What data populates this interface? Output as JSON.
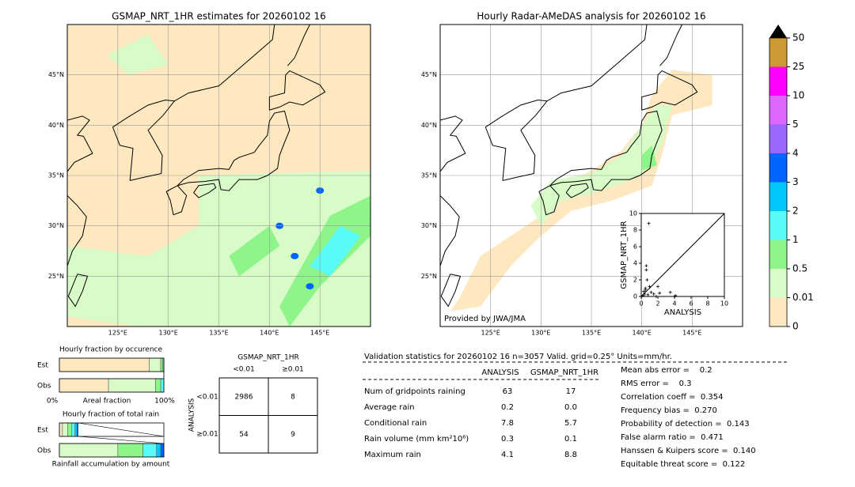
{
  "map_left": {
    "title": "GSMAP_NRT_1HR estimates for 20260102 16",
    "xlim": [
      120,
      150
    ],
    "ylim": [
      20,
      50
    ],
    "xticks": [
      {
        "value": 125,
        "label": "125°E"
      },
      {
        "value": 130,
        "label": "130°E"
      },
      {
        "value": 135,
        "label": "135°E"
      },
      {
        "value": 140,
        "label": "140°E"
      },
      {
        "value": 145,
        "label": "145°E"
      }
    ],
    "yticks": [
      {
        "value": 25,
        "label": "25°N"
      },
      {
        "value": 30,
        "label": "30°N"
      },
      {
        "value": 35,
        "label": "35°N"
      },
      {
        "value": 40,
        "label": "40°N"
      },
      {
        "value": 45,
        "label": "45°N"
      }
    ]
  },
  "map_right": {
    "title": "Hourly Radar-AMeDAS analysis for 20260102 16",
    "credit": "Provided by JWA/JMA",
    "xlim": [
      120,
      150
    ],
    "ylim": [
      20,
      50
    ],
    "xticks": [
      {
        "value": 125,
        "label": "125°E"
      },
      {
        "value": 130,
        "label": "130°E"
      },
      {
        "value": 135,
        "label": "135°E"
      },
      {
        "value": 140,
        "label": "140°E"
      },
      {
        "value": 145,
        "label": "145°E"
      }
    ],
    "yticks": [
      {
        "value": 25,
        "label": "25°N"
      },
      {
        "value": 30,
        "label": "30°N"
      },
      {
        "value": 35,
        "label": "35°N"
      },
      {
        "value": 40,
        "label": "40°N"
      },
      {
        "value": 45,
        "label": "45°N"
      }
    ]
  },
  "colorbar": {
    "labels": [
      "0",
      "0.01",
      "0.5",
      "1",
      "2",
      "3",
      "4",
      "5",
      "10",
      "25",
      "50"
    ],
    "colors": [
      "#fde8c0",
      "#d8fbc8",
      "#8ef58a",
      "#5afbf7",
      "#00c8fb",
      "#0064ff",
      "#9966ff",
      "#dd66ff",
      "#ff00ff",
      "#cc9933"
    ],
    "extend_color": "#000000"
  },
  "scatter": {
    "x_label": "ANALYSIS",
    "y_label": "GSMAP_NRT_1HR",
    "xlim": [
      0,
      10
    ],
    "ylim": [
      0,
      10
    ],
    "xticks": [
      0,
      2,
      4,
      6,
      8,
      10
    ],
    "yticks": [
      0,
      2,
      4,
      6,
      8,
      10
    ],
    "x": [
      0.2,
      0.4,
      0.5,
      0.6,
      0.8,
      1.0,
      1.2,
      0.7,
      0.3,
      1.5,
      2.0,
      3.5,
      4.1,
      1.8,
      0.9,
      0.6,
      0.5,
      2.2
    ],
    "y": [
      0.1,
      0.3,
      1.0,
      3.7,
      0.2,
      1.2,
      0.5,
      2.0,
      0.6,
      0.3,
      1.2,
      0.5,
      0.1,
      0.0,
      8.8,
      3.2,
      0.8,
      0.4
    ]
  },
  "fraction_occurrence": {
    "title": "Hourly fraction by occurence",
    "rows": [
      "Est",
      "Obs"
    ],
    "axis_left": "0%",
    "axis_label": "Areal fraction",
    "axis_right": "100%",
    "est": [
      0.86,
      0.11,
      0.02,
      0.01
    ],
    "obs": [
      0.47,
      0.45,
      0.05,
      0.03
    ]
  },
  "fraction_total": {
    "title": "Hourly fraction of total rain",
    "rows": [
      "Est",
      "Obs"
    ],
    "footer": "Rainfall accumulation by amount",
    "est": [
      0.03,
      0.05,
      0.04,
      0.03,
      0.02,
      0.01
    ],
    "obs": [
      0,
      0.56,
      0.24,
      0.13,
      0.04,
      0.03
    ]
  },
  "contingency": {
    "title": "GSMAP_NRT_1HR",
    "col_headers": [
      "<0.01",
      "≥0.01"
    ],
    "row_axis": "ANALYSIS",
    "row_headers": [
      "<0.01",
      "≥0.01"
    ],
    "cells": [
      [
        "2986",
        "8"
      ],
      [
        "54",
        "9"
      ]
    ]
  },
  "validation": {
    "header": "Validation statistics for 20260102 16  n=3057 Valid. grid=0.25° Units=mm/hr.",
    "columns": [
      "ANALYSIS",
      "GSMAP_NRT_1HR"
    ],
    "rows": [
      [
        "Num of gridpoints raining",
        "63",
        "17"
      ],
      [
        "Average rain",
        "0.2",
        "0.0"
      ],
      [
        "Conditional rain",
        "7.8",
        "5.7"
      ],
      [
        "Rain volume (mm km²10⁶)",
        "0.3",
        "0.1"
      ],
      [
        "Maximum rain",
        "4.1",
        "8.8"
      ]
    ],
    "scores": [
      "Mean abs error =    0.2",
      "RMS error =    0.3",
      "Correlation coeff =  0.354",
      "Frequency bias =  0.270",
      "Probability of detection =  0.143",
      "False alarm ratio =  0.471",
      "Hanssen & Kuipers score =  0.140",
      "Equitable threat score =  0.122"
    ]
  }
}
